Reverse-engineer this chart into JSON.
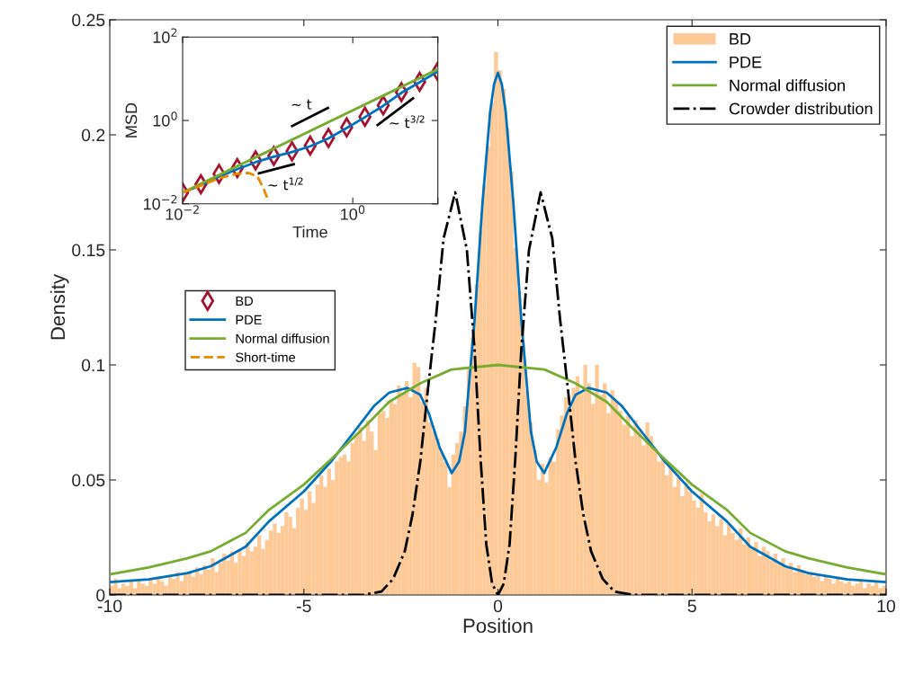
{
  "chart_data": [
    {
      "type": "histogram",
      "xlabel": "Position",
      "ylabel": "Density",
      "xlim": [
        -10,
        10
      ],
      "ylim": [
        0,
        0.25
      ],
      "xticks": [
        -10,
        -5,
        0,
        5,
        10
      ],
      "yticks": [
        0,
        0.05,
        0.1,
        0.15,
        0.2,
        0.25
      ],
      "grid": false,
      "legend": "top right",
      "series": [
        {
          "name": "BD",
          "color": "#fdc997",
          "bins": [
            -10,
            -9.9,
            -9.8,
            -9.7,
            -9.6,
            -9.5,
            -9.4,
            -9.3,
            -9.2,
            -9.1,
            -9,
            -8.9,
            -8.8,
            -8.7,
            -8.6,
            -8.5,
            -8.4,
            -8.3,
            -8.2,
            -8.1,
            -8,
            -7.9,
            -7.8,
            -7.7,
            -7.6,
            -7.5,
            -7.4,
            -7.3,
            -7.2,
            -7.1,
            -7,
            -6.9,
            -6.8,
            -6.7,
            -6.6,
            -6.5,
            -6.4,
            -6.3,
            -6.2,
            -6.1,
            -6,
            -5.9,
            -5.8,
            -5.7,
            -5.6,
            -5.5,
            -5.4,
            -5.3,
            -5.2,
            -5.1,
            -5,
            -4.9,
            -4.8,
            -4.7,
            -4.6,
            -4.5,
            -4.4,
            -4.3,
            -4.2,
            -4.1,
            -4,
            -3.9,
            -3.8,
            -3.7,
            -3.6,
            -3.5,
            -3.4,
            -3.3,
            -3.2,
            -3.1,
            -3,
            -2.9,
            -2.8,
            -2.7,
            -2.6,
            -2.5,
            -2.4,
            -2.3,
            -2.2,
            -2.1,
            -2,
            -1.9,
            -1.8,
            -1.7,
            -1.6,
            -1.5,
            -1.4,
            -1.3,
            -1.2,
            -1.1,
            -1,
            -0.9,
            -0.8,
            -0.7,
            -0.6,
            -0.5,
            -0.4,
            -0.3,
            -0.2,
            -0.1,
            0,
            0.1,
            0.2,
            0.3,
            0.4,
            0.5,
            0.6,
            0.7,
            0.8,
            0.9,
            1,
            1.1,
            1.2,
            1.3,
            1.4,
            1.5,
            1.6,
            1.7,
            1.8,
            1.9,
            2,
            2.1,
            2.2,
            2.3,
            2.4,
            2.5,
            2.6,
            2.7,
            2.8,
            2.9,
            3,
            3.1,
            3.2,
            3.3,
            3.4,
            3.5,
            3.6,
            3.7,
            3.8,
            3.9,
            4,
            4.1,
            4.2,
            4.3,
            4.4,
            4.5,
            4.6,
            4.7,
            4.8,
            4.9,
            5,
            5.1,
            5.2,
            5.3,
            5.4,
            5.5,
            5.6,
            5.7,
            5.8,
            5.9,
            6,
            6.1,
            6.2,
            6.3,
            6.4,
            6.5,
            6.6,
            6.7,
            6.8,
            6.9,
            7,
            7.1,
            7.2,
            7.3,
            7.4,
            7.5,
            7.6,
            7.7,
            7.8,
            7.9,
            8,
            8.1,
            8.2,
            8.3,
            8.4,
            8.5,
            8.6,
            8.7,
            8.8,
            8.9,
            9,
            9.1,
            9.2,
            9.3,
            9.4,
            9.5,
            9.6,
            9.7,
            9.8,
            9.9,
            10
          ],
          "values": [
            0.004,
            0.007,
            0.003,
            0.005,
            0.004,
            0.006,
            0.003,
            0.006,
            0.005,
            0.004,
            0.007,
            0.005,
            0.008,
            0.006,
            0.004,
            0.008,
            0.007,
            0.01,
            0.006,
            0.009,
            0.01,
            0.008,
            0.012,
            0.009,
            0.013,
            0.011,
            0.016,
            0.01,
            0.014,
            0.018,
            0.015,
            0.019,
            0.014,
            0.02,
            0.017,
            0.023,
            0.019,
            0.021,
            0.026,
            0.02,
            0.024,
            0.028,
            0.031,
            0.027,
            0.03,
            0.036,
            0.034,
            0.029,
            0.038,
            0.042,
            0.037,
            0.045,
            0.04,
            0.048,
            0.052,
            0.047,
            0.055,
            0.05,
            0.058,
            0.06,
            0.061,
            0.058,
            0.066,
            0.07,
            0.073,
            0.067,
            0.076,
            0.071,
            0.063,
            0.079,
            0.08,
            0.077,
            0.085,
            0.083,
            0.091,
            0.088,
            0.093,
            0.086,
            0.101,
            0.099,
            0.084,
            0.09,
            0.075,
            0.071,
            0.068,
            0.062,
            0.058,
            0.047,
            0.061,
            0.066,
            0.071,
            0.082,
            0.098,
            0.112,
            0.135,
            0.158,
            0.178,
            0.195,
            0.214,
            0.236,
            0.228,
            0.22,
            0.203,
            0.184,
            0.151,
            0.132,
            0.11,
            0.089,
            0.075,
            0.063,
            0.05,
            0.057,
            0.049,
            0.06,
            0.058,
            0.072,
            0.078,
            0.086,
            0.082,
            0.09,
            0.095,
            0.088,
            0.1,
            0.092,
            0.083,
            0.1,
            0.087,
            0.092,
            0.079,
            0.089,
            0.084,
            0.08,
            0.074,
            0.078,
            0.069,
            0.076,
            0.072,
            0.065,
            0.075,
            0.069,
            0.063,
            0.058,
            0.06,
            0.052,
            0.055,
            0.047,
            0.051,
            0.043,
            0.049,
            0.045,
            0.041,
            0.038,
            0.044,
            0.036,
            0.032,
            0.035,
            0.03,
            0.033,
            0.026,
            0.031,
            0.027,
            0.024,
            0.029,
            0.022,
            0.025,
            0.02,
            0.023,
            0.017,
            0.021,
            0.019,
            0.015,
            0.018,
            0.014,
            0.016,
            0.012,
            0.014,
            0.01,
            0.013,
            0.011,
            0.009,
            0.01,
            0.008,
            0.009,
            0.006,
            0.008,
            0.007,
            0.005,
            0.008,
            0.006,
            0.005,
            0.006,
            0.004,
            0.005,
            0.007,
            0.003,
            0.005,
            0.004,
            0.006,
            0.003,
            0.004
          ]
        },
        {
          "name": "PDE",
          "type": "line",
          "color": "#0072bd",
          "line_style": "solid",
          "x": [
            -10,
            -9,
            -8,
            -7.4,
            -6.5,
            -5.9,
            -5,
            -4.3,
            -3.7,
            -3.2,
            -2.8,
            -2.33,
            -2,
            -1.78,
            -1.5,
            -1.19,
            -1,
            -0.85,
            -0.6,
            -0.4,
            -0.2,
            -0.1,
            0,
            0.1,
            0.2,
            0.4,
            0.6,
            0.85,
            1,
            1.19,
            1.5,
            1.78,
            2,
            2.33,
            2.8,
            3.2,
            3.7,
            4.3,
            5,
            5.9,
            6.5,
            7.4,
            8,
            9,
            10
          ],
          "values": [
            0.0056,
            0.0068,
            0.0095,
            0.0125,
            0.021,
            0.032,
            0.045,
            0.058,
            0.071,
            0.082,
            0.088,
            0.09,
            0.087,
            0.079,
            0.064,
            0.053,
            0.058,
            0.071,
            0.12,
            0.17,
            0.21,
            0.222,
            0.227,
            0.222,
            0.21,
            0.17,
            0.12,
            0.071,
            0.058,
            0.053,
            0.064,
            0.079,
            0.087,
            0.09,
            0.088,
            0.082,
            0.071,
            0.058,
            0.045,
            0.032,
            0.021,
            0.0125,
            0.0095,
            0.0068,
            0.0056
          ]
        },
        {
          "name": "Normal diffusion",
          "type": "line",
          "color": "#77ac30",
          "line_style": "solid",
          "x": [
            -10,
            -9,
            -8,
            -7.4,
            -6.5,
            -5.9,
            -5,
            -4.3,
            -3.5,
            -2.8,
            -2,
            -1.2,
            0,
            1.2,
            2,
            2.8,
            3.5,
            4.3,
            5,
            5.9,
            6.5,
            7.4,
            8,
            9,
            10
          ],
          "values": [
            0.009,
            0.012,
            0.016,
            0.019,
            0.027,
            0.037,
            0.048,
            0.059,
            0.072,
            0.084,
            0.092,
            0.098,
            0.1,
            0.098,
            0.092,
            0.084,
            0.072,
            0.059,
            0.048,
            0.037,
            0.027,
            0.019,
            0.016,
            0.012,
            0.009
          ]
        },
        {
          "name": "Crowder distribution",
          "type": "line",
          "color": "#000000",
          "line_style": "dashdot",
          "x": [
            -10,
            -3.5,
            -3,
            -2.7,
            -2.4,
            -2.2,
            -2,
            -1.8,
            -1.6,
            -1.4,
            -1.1,
            -0.8,
            -0.6,
            -0.45,
            -0.3,
            -0.15,
            0,
            0.15,
            0.3,
            0.45,
            0.6,
            0.8,
            1.1,
            1.4,
            1.6,
            1.8,
            2,
            2.2,
            2.4,
            2.7,
            3,
            3.5,
            10
          ],
          "values": [
            0,
            0,
            0.0015,
            0.007,
            0.019,
            0.035,
            0.058,
            0.09,
            0.12,
            0.155,
            0.175,
            0.15,
            0.106,
            0.06,
            0.022,
            0.005,
            0,
            0.005,
            0.022,
            0.06,
            0.106,
            0.15,
            0.175,
            0.155,
            0.12,
            0.09,
            0.058,
            0.035,
            0.019,
            0.007,
            0.0015,
            0,
            0
          ]
        }
      ]
    },
    {
      "type": "line",
      "xlabel": "Time",
      "ylabel": "MSD",
      "log": "xy",
      "xlim": [
        0.01,
        10
      ],
      "ylim": [
        0.01,
        100
      ],
      "xticks": [
        {
          "value": 0.01,
          "label": "10$^{−2}$"
        },
        {
          "value": 1,
          "label": "10$^{0}$"
        },
        {
          "value": 10,
          "label": null
        }
      ],
      "yticks": [
        {
          "value": 0.01,
          "label": "10$^{−2}$"
        },
        {
          "value": 1,
          "label": "10$^{0}$"
        },
        {
          "value": 100,
          "label": "10$^{2}$"
        }
      ],
      "grid": false,
      "legend": "bottom left",
      "annotations": [
        "∼ t",
        "∼ t$^{1/2}$",
        "∼ t$^{3/2}$"
      ],
      "series": [
        {
          "name": "BD",
          "type": "scatter",
          "color": "#a2142f",
          "marker": "diamond",
          "x": [
            0.01,
            0.0164,
            0.0268,
            0.0439,
            0.072,
            0.118,
            0.193,
            0.316,
            0.518,
            0.848,
            1.39,
            2.28,
            3.73,
            6.11,
            10
          ],
          "values": [
            0.0186,
            0.0295,
            0.0525,
            0.072,
            0.11,
            0.141,
            0.182,
            0.25,
            0.38,
            0.68,
            1.23,
            2.3,
            4.8,
            8.5,
            15
          ]
        },
        {
          "name": "PDE",
          "color": "#0072bd",
          "line_style": "solid",
          "x": [
            0.01,
            0.0164,
            0.0268,
            0.0439,
            0.072,
            0.118,
            0.193,
            0.316,
            0.518,
            0.848,
            1.39,
            2.28,
            3.73,
            6.11,
            10
          ],
          "values": [
            0.0186,
            0.028,
            0.045,
            0.068,
            0.1,
            0.135,
            0.175,
            0.24,
            0.37,
            0.66,
            1.2,
            2.25,
            4.6,
            8.3,
            15
          ]
        },
        {
          "name": "Normal diffusion",
          "color": "#77ac30",
          "line_style": "solid",
          "x": [
            0.01,
            10
          ],
          "values": [
            0.0186,
            17
          ]
        },
        {
          "name": "Short-time",
          "color": "#e68a00",
          "line_style": "dashed",
          "x": [
            0.01,
            0.0162,
            0.0265,
            0.0431,
            0.0599,
            0.076,
            0.0895,
            0.0989
          ],
          "values": [
            0.0186,
            0.027,
            0.041,
            0.0525,
            0.055,
            0.045,
            0.023,
            0.0138
          ]
        },
        {
          "color": "#000000",
          "line_style": "solid",
          "x": [
            0.194,
            0.51
          ],
          "values": [
            0.74,
            2.0
          ]
        },
        {
          "color": "#000000",
          "line_style": "solid",
          "x": [
            0.079,
            0.202
          ],
          "values": [
            0.054,
            0.089
          ]
        },
        {
          "color": "#000000",
          "line_style": "solid",
          "x": [
            1.96,
            5.1
          ],
          "values": [
            0.78,
            3.4
          ]
        }
      ]
    }
  ]
}
